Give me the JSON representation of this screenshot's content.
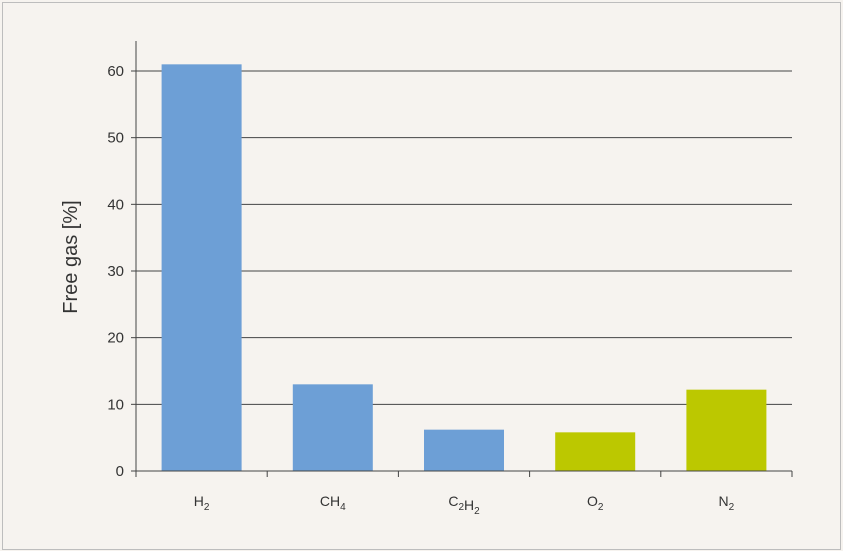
{
  "chart_data": {
    "type": "bar",
    "ylabel": "Free gas [%]",
    "xlabel": "",
    "title": "",
    "ylim": [
      0,
      60
    ],
    "yticks": [
      0,
      10,
      20,
      30,
      40,
      50,
      60
    ],
    "grid": true,
    "categories": [
      {
        "base": "H",
        "sub": "2",
        "parts": [
          [
            "H",
            "2"
          ]
        ]
      },
      {
        "base": "CH",
        "sub": "4",
        "parts": [
          [
            "CH",
            "4"
          ]
        ]
      },
      {
        "base": "C2H2",
        "sub": "",
        "parts": [
          [
            "C",
            "2"
          ],
          [
            "H",
            "2"
          ]
        ]
      },
      {
        "base": "O",
        "sub": "2",
        "parts": [
          [
            "O",
            "2"
          ]
        ]
      },
      {
        "base": "N",
        "sub": "2",
        "parts": [
          [
            "N",
            "2"
          ]
        ]
      }
    ],
    "category_labels": [
      "H2",
      "CH4",
      "C2H2",
      "O2",
      "N2"
    ],
    "values": [
      61,
      13,
      6.2,
      5.8,
      12.2
    ],
    "bar_colors": [
      "#6d9fd6",
      "#6d9fd6",
      "#6d9fd6",
      "#bcc800",
      "#bcc800"
    ]
  }
}
